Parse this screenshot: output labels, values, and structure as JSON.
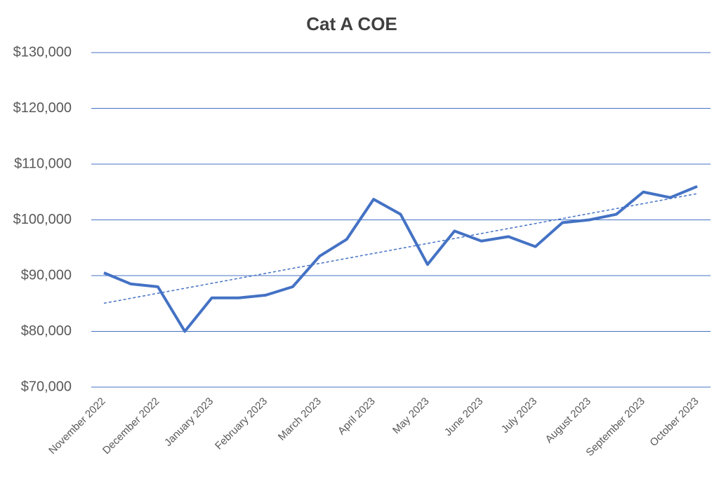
{
  "chart_data": {
    "type": "line",
    "title": "Cat A COE",
    "categories": [
      "November 2022",
      null,
      "December 2022",
      null,
      "January 2023",
      null,
      "February 2023",
      null,
      "March 2023",
      null,
      "April 2023",
      null,
      "May 2023",
      null,
      "June 2023",
      null,
      "July 2023",
      null,
      "August 2023",
      null,
      "September 2023",
      null,
      "October 2023"
    ],
    "series": [
      {
        "name": "Cat A COE",
        "color": "#4472c4",
        "values": [
          90500,
          88500,
          88000,
          80000,
          86000,
          86000,
          86500,
          88000,
          93500,
          96500,
          103700,
          101000,
          92000,
          98000,
          96200,
          97000,
          95200,
          99500,
          100000,
          101000,
          105000,
          104000,
          106000
        ]
      }
    ],
    "ylim": [
      70000,
      130000
    ],
    "yticks": [
      {
        "value": 70000,
        "label": "$70,000"
      },
      {
        "value": 80000,
        "label": "$80,000"
      },
      {
        "value": 90000,
        "label": "$90,000"
      },
      {
        "value": 100000,
        "label": "$100,000"
      },
      {
        "value": 110000,
        "label": "$110,000"
      },
      {
        "value": 120000,
        "label": "$120,000"
      },
      {
        "value": 130000,
        "label": "$130,000"
      }
    ],
    "grid": true,
    "trendline": true
  }
}
